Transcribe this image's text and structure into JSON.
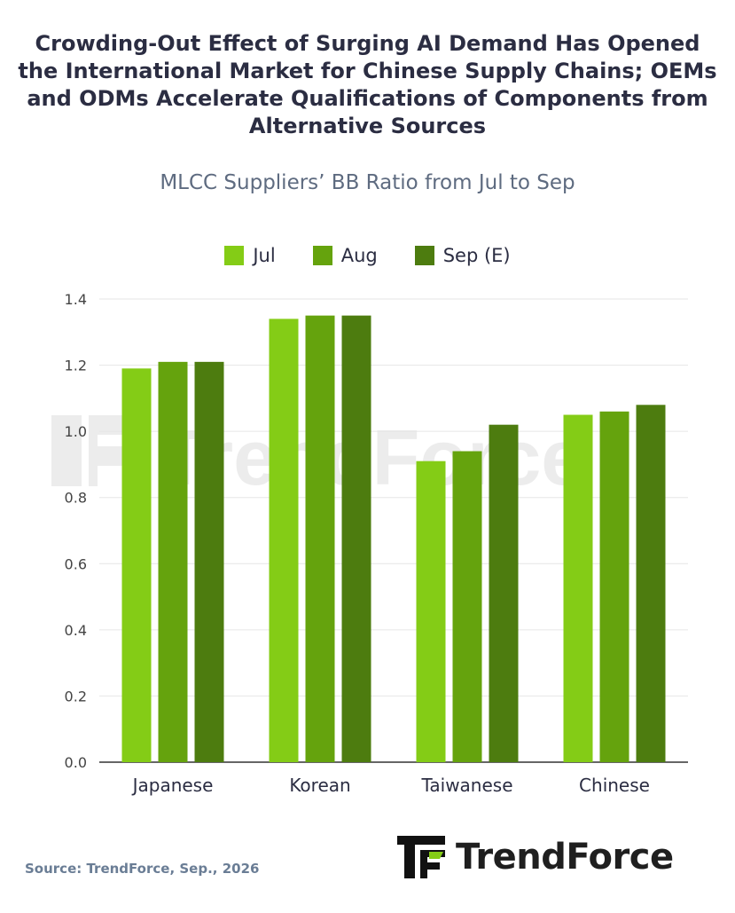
{
  "title": "Crowding-Out Effect of Surging AI Demand Has Opened the International Market for Chinese Supply Chains; OEMs and ODMs Accelerate Qualifications of Components from Alternative Sources",
  "subtitle": "MLCC Suppliers’ BB Ratio from Jul to Sep",
  "source": "Source: TrendForce, Sep., 2026",
  "brand": "TrendForce",
  "watermark": "TrendForce",
  "chart_data": {
    "type": "bar",
    "categories": [
      "Japanese",
      "Korean",
      "Taiwanese",
      "Chinese"
    ],
    "series": [
      {
        "name": "Jul",
        "color": "#84cc16",
        "values": [
          1.19,
          1.34,
          0.91,
          1.05
        ]
      },
      {
        "name": "Aug",
        "color": "#65a30d",
        "values": [
          1.21,
          1.35,
          0.94,
          1.06
        ]
      },
      {
        "name": "Sep (E)",
        "color": "#4d7c0f",
        "values": [
          1.21,
          1.35,
          1.02,
          1.08
        ]
      }
    ],
    "ylim": [
      0,
      1.4
    ],
    "yticks": [
      "0.0",
      "0.2",
      "0.4",
      "0.6",
      "0.8",
      "1.0",
      "1.2",
      "1.4"
    ],
    "grid": true,
    "legend": "top-center"
  }
}
